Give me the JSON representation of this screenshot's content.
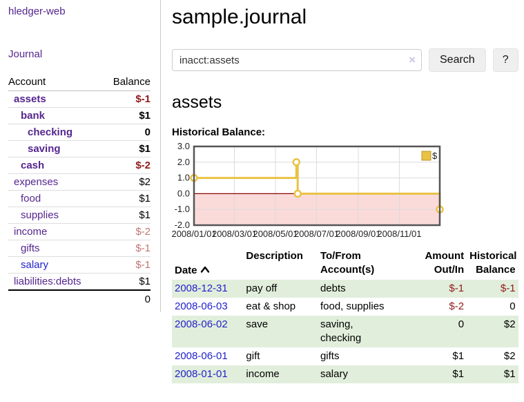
{
  "app": {
    "brand": "hledger-web",
    "nav_journal": "Journal"
  },
  "sidebar": {
    "accounts_header": {
      "account": "Account",
      "balance": "Balance"
    },
    "accounts": [
      {
        "name": "assets",
        "level": 1,
        "emph": true,
        "balance": "$-1",
        "negative": true
      },
      {
        "name": "bank",
        "level": 2,
        "emph": true,
        "balance": "$1",
        "negative": false
      },
      {
        "name": "checking",
        "level": 3,
        "emph": true,
        "balance": "0",
        "negative": false
      },
      {
        "name": "saving",
        "level": 3,
        "emph": true,
        "balance": "$1",
        "negative": false
      },
      {
        "name": "cash",
        "level": 2,
        "emph": true,
        "balance": "$-2",
        "negative": true
      },
      {
        "name": "expenses",
        "level": 1,
        "emph": false,
        "balance": "$2",
        "negative": false
      },
      {
        "name": "food",
        "level": 2,
        "emph": false,
        "balance": "$1",
        "negative": false
      },
      {
        "name": "supplies",
        "level": 2,
        "emph": false,
        "balance": "$1",
        "negative": false
      },
      {
        "name": "income",
        "level": 1,
        "emph": false,
        "balance": "$-2",
        "negative": true
      },
      {
        "name": "gifts",
        "level": 2,
        "emph": false,
        "balance": "$-1",
        "negative": true
      },
      {
        "name": "salary",
        "level": 2,
        "emph": false,
        "balance": "$-1",
        "negative": true,
        "unvisited": true
      },
      {
        "name": "liabilities:debts",
        "level": 1,
        "emph": false,
        "balance": "$1",
        "negative": false
      }
    ],
    "total": "0"
  },
  "header": {
    "title": "sample.journal"
  },
  "search": {
    "value": "inacct:assets",
    "clear_icon": "×",
    "button_label": "Search",
    "help_label": "?"
  },
  "account_view": {
    "heading": "assets",
    "chart_label": "Historical Balance:"
  },
  "chart_data": {
    "type": "line",
    "title": "Historical Balance",
    "step": true,
    "series": [
      {
        "name": "$",
        "color": "#e9c244",
        "points": [
          [
            "2008-01-01",
            1
          ],
          [
            "2008-06-01",
            2
          ],
          [
            "2008-06-03",
            0
          ],
          [
            "2008-12-31",
            -1
          ]
        ]
      }
    ],
    "xlim": [
      "2008-01-01",
      "2008-12-31"
    ],
    "ylim": [
      -2,
      3
    ],
    "yticks": [
      3.0,
      2.0,
      1.0,
      0.0,
      -1.0,
      -2.0
    ],
    "xticks": [
      "2008/01/01",
      "2008/03/01",
      "2008/05/01",
      "2008/07/01",
      "2008/09/01",
      "2008/11/01"
    ],
    "grid": true,
    "negative_region_color": "#fbdada",
    "zero_line_color": "#8b0000",
    "grid_color": "#dcdcdc",
    "border_color": "#555555",
    "legend": {
      "label": "$",
      "position": "top-right"
    }
  },
  "register": {
    "headers": {
      "date": "Date",
      "description": "Description",
      "accounts": "To/From\nAccount(s)",
      "amount": "Amount\nOut/In",
      "balance": "Historical\nBalance"
    },
    "rows": [
      {
        "date": "2008-12-31",
        "description": "pay off",
        "accounts": "debts",
        "amount": "$-1",
        "amount_negative": true,
        "balance": "$-1",
        "balance_negative": true,
        "shaded": true
      },
      {
        "date": "2008-06-03",
        "description": "eat & shop",
        "accounts": "food, supplies",
        "amount": "$-2",
        "amount_negative": true,
        "balance": "0",
        "balance_negative": false,
        "shaded": false
      },
      {
        "date": "2008-06-02",
        "description": "save",
        "accounts": "saving,\nchecking",
        "amount": "0",
        "amount_negative": false,
        "balance": "$2",
        "balance_negative": false,
        "shaded": true
      },
      {
        "date": "2008-06-01",
        "description": "gift",
        "accounts": "gifts",
        "amount": "$1",
        "amount_negative": false,
        "balance": "$2",
        "balance_negative": false,
        "shaded": false
      },
      {
        "date": "2008-01-01",
        "description": "income",
        "accounts": "salary",
        "amount": "$1",
        "amount_negative": false,
        "balance": "$1",
        "balance_negative": false,
        "shaded": true
      }
    ]
  }
}
